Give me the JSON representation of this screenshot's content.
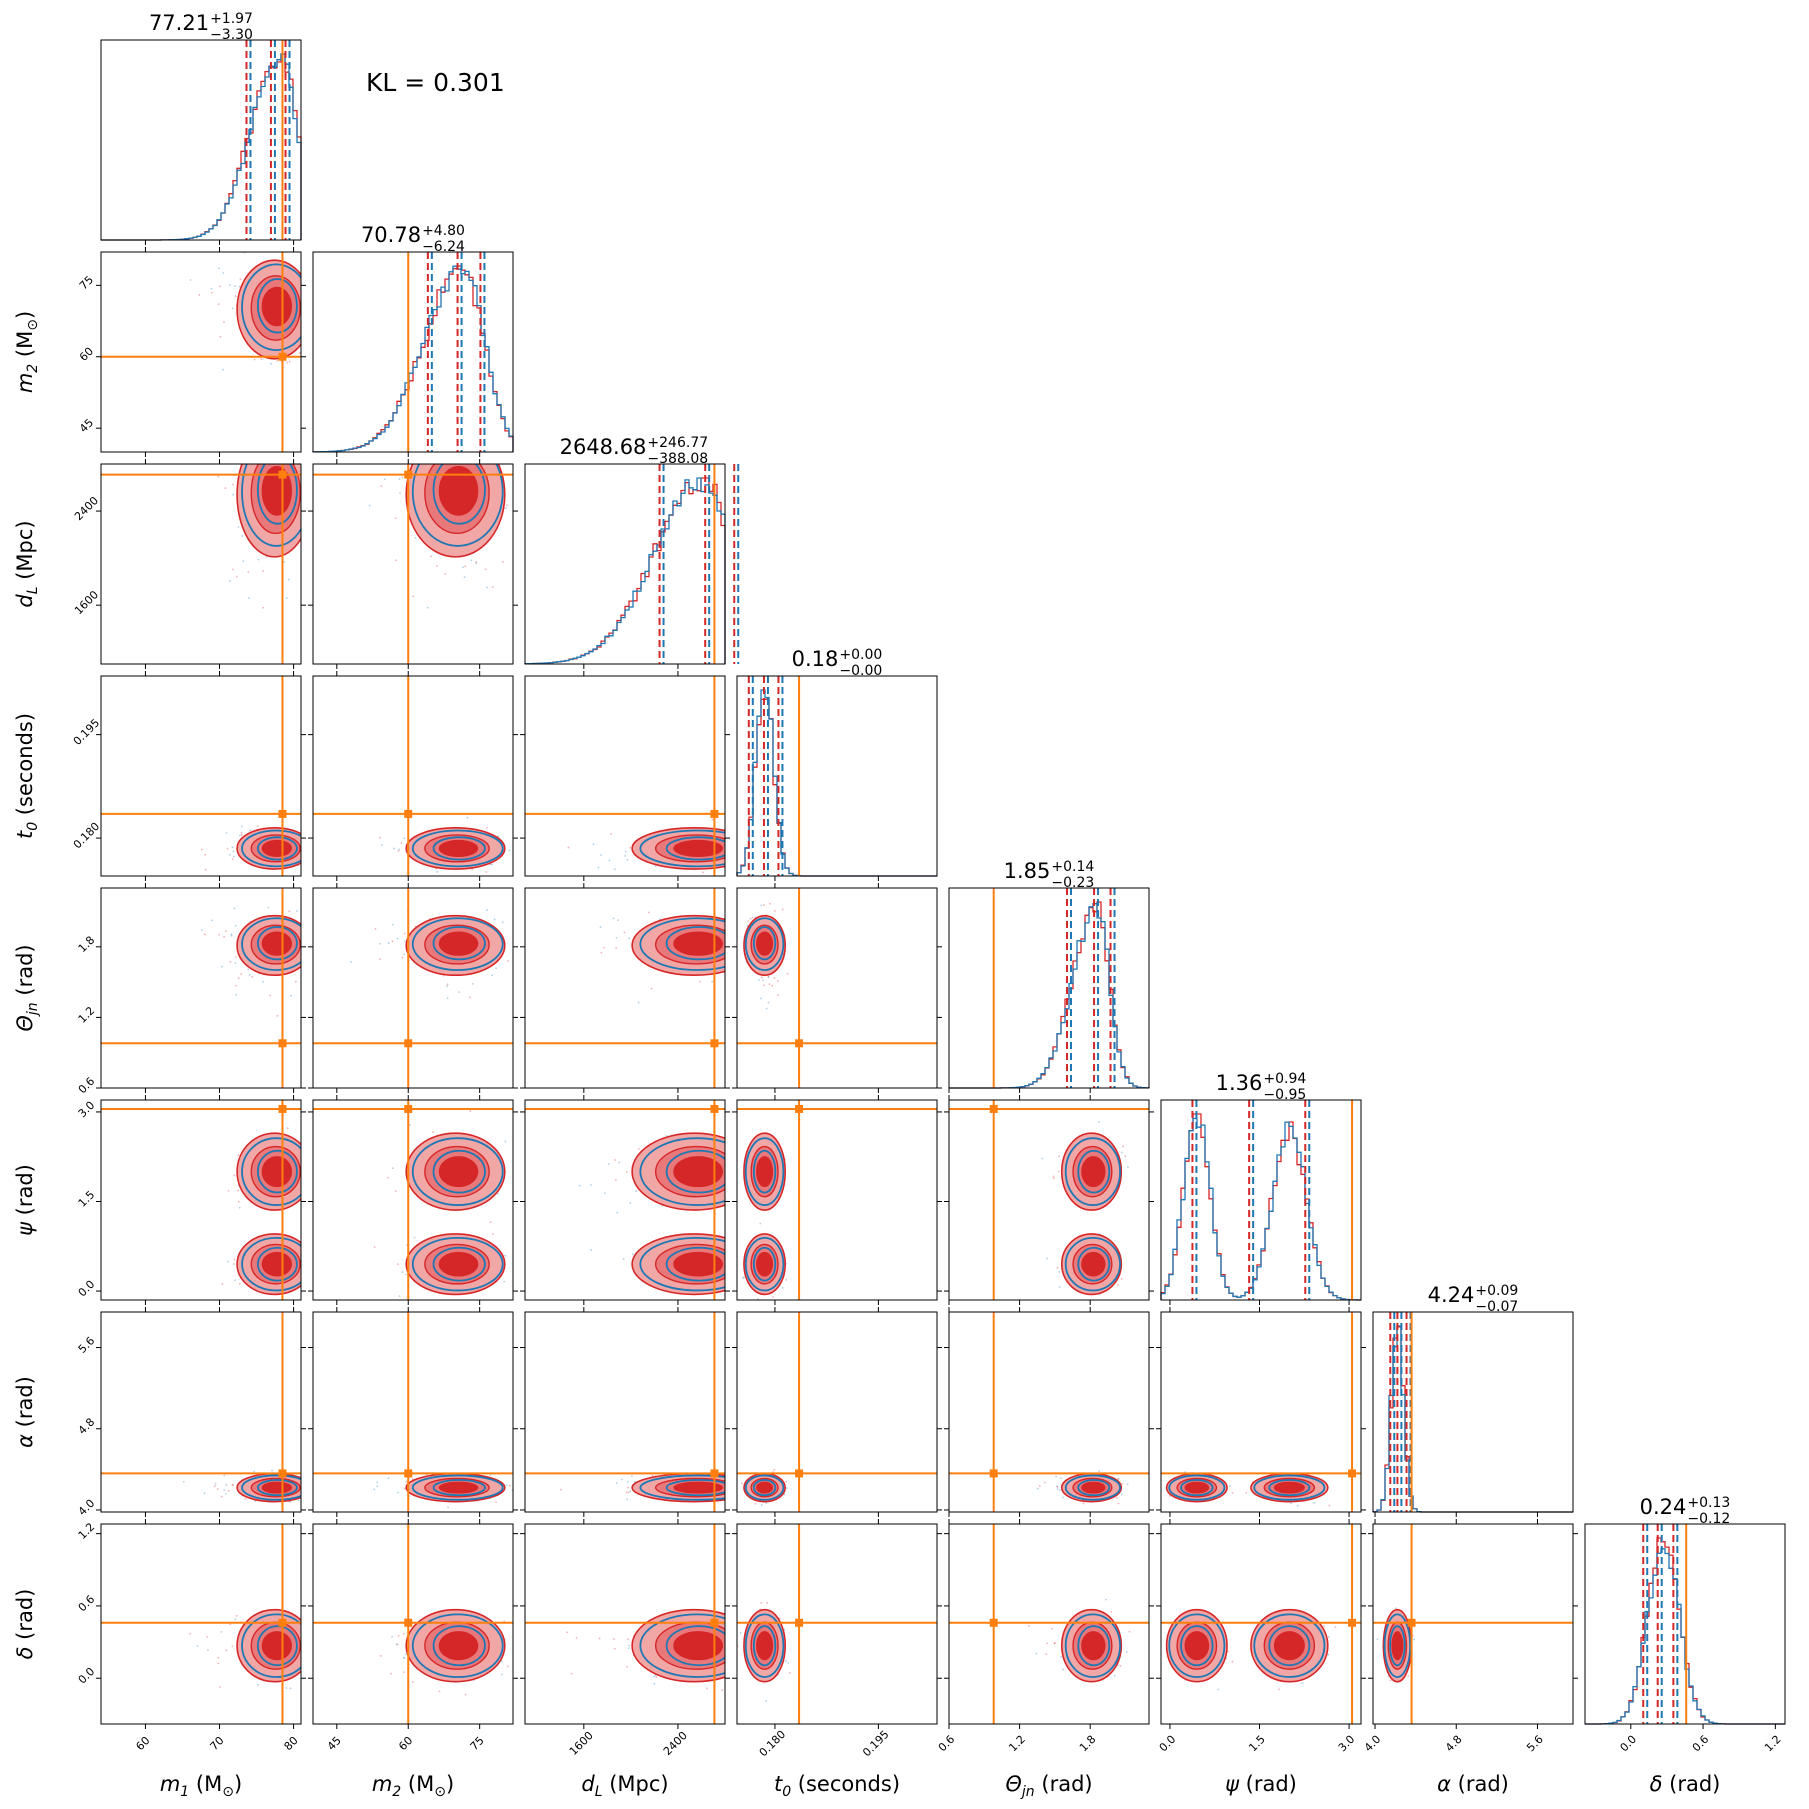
{
  "chart_data": {
    "type": "corner",
    "annotation": "KL = 0.301",
    "colors": {
      "samples_a": "#1f77b4",
      "samples_b": "#d62728",
      "truth": "#ff7f0e"
    },
    "parameters": [
      {
        "key": "m1",
        "label_base": "m",
        "label_sub": "1",
        "label_unit": "(M",
        "label_unit_sub": "⊙",
        "label_close": ")",
        "range": [
          54,
          81
        ],
        "ticks": [
          60,
          70,
          80
        ],
        "tick_labels": [
          "60",
          "70",
          "80"
        ],
        "truth": 78.5,
        "median": "77.21",
        "plus": "+1.97",
        "minus": "−3.30",
        "median_value": 77.21,
        "ci": [
          73.91,
          79.18
        ]
      },
      {
        "key": "m2",
        "label_base": "m",
        "label_sub": "2",
        "label_unit": "(M",
        "label_unit_sub": "⊙",
        "label_close": ")",
        "range": [
          40,
          82
        ],
        "ticks": [
          45,
          60,
          75
        ],
        "tick_labels": [
          "45",
          "60",
          "75"
        ],
        "truth": 60,
        "median": "70.78",
        "plus": "+4.80",
        "minus": "−6.24",
        "median_value": 70.78,
        "ci": [
          64.54,
          75.58
        ]
      },
      {
        "key": "dL",
        "label_base": "d",
        "label_sub": "L",
        "label_unit": "(Mpc)",
        "label_unit_sub": "",
        "label_close": "",
        "range": [
          1100,
          2800
        ],
        "ticks": [
          1600,
          2400
        ],
        "tick_labels": [
          "1600",
          "2400"
        ],
        "truth": 2710,
        "median": "2648.68",
        "plus": "+246.77",
        "minus": "−388.08",
        "median_value": 2648.68,
        "ci": [
          2260.6,
          2895.45
        ]
      },
      {
        "key": "t0",
        "label_base": "t",
        "label_sub": "0",
        "label_unit": "(seconds)",
        "label_unit_sub": "",
        "label_close": "",
        "range": [
          0.1745,
          0.2035
        ],
        "ticks": [
          0.18,
          0.195
        ],
        "tick_labels": [
          "0.180",
          "0.195"
        ],
        "truth": 0.1835,
        "median": "0.18",
        "plus": "+0.00",
        "minus": "−0.00",
        "median_value": 0.1787,
        "ci": [
          0.1765,
          0.1808
        ]
      },
      {
        "key": "theta",
        "label_base": "Θ",
        "label_sub": "jn",
        "label_unit": "(rad)",
        "label_unit_sub": "",
        "label_close": "",
        "range": [
          0.6,
          2.3
        ],
        "ticks": [
          0.6,
          1.2,
          1.8
        ],
        "tick_labels": [
          "0.6",
          "1.2",
          "1.8"
        ],
        "truth": 0.98,
        "median": "1.85",
        "plus": "+0.14",
        "minus": "−0.23",
        "median_value": 1.85,
        "ci": [
          1.62,
          1.99
        ]
      },
      {
        "key": "psi",
        "label_base": "ψ",
        "label_sub": "",
        "label_unit": "(rad)",
        "label_unit_sub": "",
        "label_close": "",
        "range": [
          -0.15,
          3.2
        ],
        "ticks": [
          0,
          1.5,
          3
        ],
        "tick_labels": [
          "0.0",
          "1.5",
          "3.0"
        ],
        "truth": 3.05,
        "median": "1.36",
        "plus": "+0.94",
        "minus": "−0.95",
        "median_value": 1.36,
        "ci": [
          0.41,
          2.3
        ]
      },
      {
        "key": "alpha",
        "label_base": "α",
        "label_sub": "",
        "label_unit": "(rad)",
        "label_unit_sub": "",
        "label_close": "",
        "range": [
          3.98,
          5.95
        ],
        "ticks": [
          4,
          4.8,
          5.6
        ],
        "tick_labels": [
          "4.0",
          "4.8",
          "5.6"
        ],
        "truth": 4.36,
        "median": "4.24",
        "plus": "+0.09",
        "minus": "−0.07",
        "median_value": 4.24,
        "ci": [
          4.17,
          4.33
        ]
      },
      {
        "key": "delta",
        "label_base": "δ",
        "label_sub": "",
        "label_unit": "(rad)",
        "label_unit_sub": "",
        "label_close": "",
        "range": [
          -0.38,
          1.28
        ],
        "ticks": [
          0,
          0.6,
          1.2
        ],
        "tick_labels": [
          "0.0",
          "0.6",
          "1.2"
        ],
        "truth": 0.46,
        "median": "0.24",
        "plus": "+0.13",
        "minus": "−0.12",
        "median_value": 0.24,
        "ci": [
          0.12,
          0.37
        ]
      }
    ]
  }
}
